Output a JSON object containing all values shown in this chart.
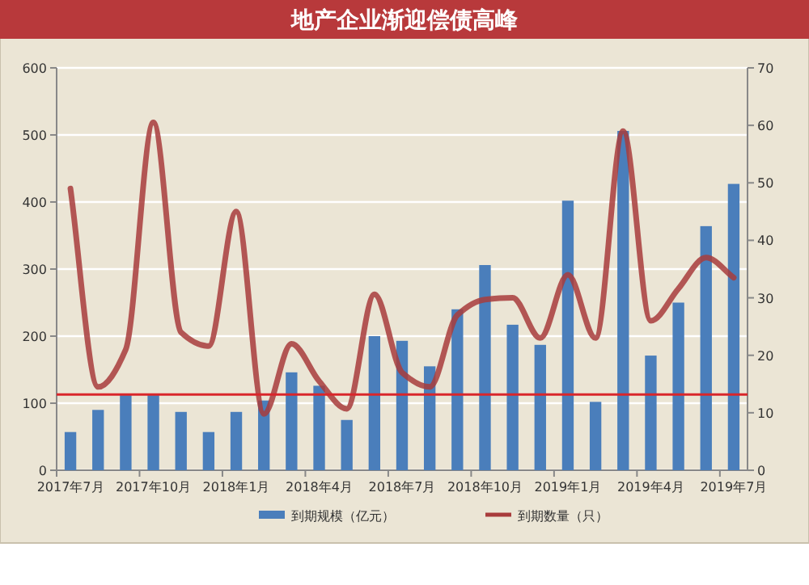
{
  "chart_data": {
    "type": "bar",
    "title": "地产企业渐迎偿债高峰",
    "categories": [
      "2017年7月",
      null,
      null,
      "2017年10月",
      null,
      null,
      "2018年1月",
      null,
      null,
      "2018年4月",
      null,
      null,
      "2018年7月",
      null,
      null,
      "2018年10月",
      null,
      null,
      "2019年1月",
      null,
      null,
      "2019年4月",
      null,
      null,
      "2019年7月"
    ],
    "series": [
      {
        "name": "到期规模（亿元）",
        "color": "#4a7ebb",
        "values": [
          57,
          90,
          112,
          112,
          87,
          57,
          87,
          104,
          146,
          126,
          75,
          200,
          193,
          155,
          240,
          306,
          217,
          187,
          402,
          102,
          506,
          171,
          250,
          364,
          427
        ]
      },
      {
        "name": "到期数量（只）",
        "type": "line",
        "axis": "y2",
        "color": "#a83c3c",
        "values": [
          49,
          14.5,
          21,
          60.5,
          24,
          21.6,
          45,
          9.8,
          22,
          15.5,
          10.7,
          30.6,
          17,
          14.5,
          27,
          29.7,
          30,
          23,
          34,
          23,
          59,
          26,
          31.6,
          37,
          33.5
        ]
      }
    ],
    "ylim": [
      0,
      600
    ],
    "yticks": [
      0,
      100,
      200,
      300,
      400,
      500,
      600
    ],
    "y2lim": [
      0,
      70
    ],
    "y2ticks": [
      0,
      10,
      20,
      30,
      40,
      50,
      60,
      70
    ],
    "ref_lines": [
      {
        "axis": "y",
        "value": 113,
        "color": "#d9262b"
      }
    ],
    "grid": "y",
    "legend": "bottom"
  }
}
